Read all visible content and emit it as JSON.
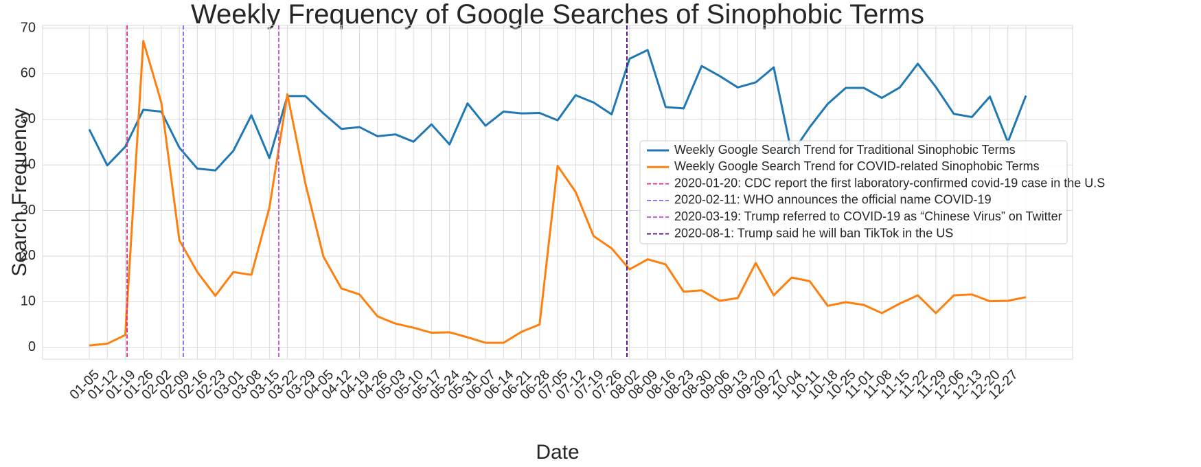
{
  "chart_data": {
    "type": "line",
    "title": "Weekly Frequency of Google Searches of Sinophobic Terms",
    "x_label": "Date",
    "y_label": "Search Frequency",
    "categories": [
      "01-05",
      "01-12",
      "01-19",
      "01-26",
      "02-02",
      "02-09",
      "02-16",
      "02-23",
      "03-01",
      "03-08",
      "03-15",
      "03-22",
      "03-29",
      "04-05",
      "04-12",
      "04-19",
      "04-26",
      "05-03",
      "05-10",
      "05-17",
      "05-24",
      "05-31",
      "06-07",
      "06-14",
      "06-21",
      "06-28",
      "07-05",
      "07-12",
      "07-19",
      "07-26",
      "08-02",
      "08-09",
      "08-16",
      "08-23",
      "08-30",
      "09-06",
      "09-13",
      "09-20",
      "09-27",
      "10-04",
      "10-11",
      "10-18",
      "10-25",
      "11-01",
      "11-08",
      "11-15",
      "11-22",
      "11-29",
      "12-06",
      "12-13",
      "12-20",
      "12-27",
      null
    ],
    "series": [
      {
        "name": "Weekly Google Search Trend for Traditional Sinophobic Terms",
        "color": "#1f77b4",
        "values": [
          47.8,
          39.9,
          44,
          52.1,
          51.7,
          43.8,
          39.2,
          38.8,
          43.1,
          50.9,
          41.5,
          55.1,
          55.1,
          51.3,
          47.9,
          48.3,
          46.3,
          46.7,
          45.1,
          48.9,
          44.5,
          53.5,
          48.6,
          51.7,
          51.3,
          51.4,
          49.8,
          55.3,
          53.7,
          51.1,
          63.3,
          65.2,
          52.7,
          52.4,
          61.7,
          59.5,
          57,
          58.1,
          61.4,
          42.5,
          48.3,
          53.4,
          56.9,
          56.9,
          54.7,
          57,
          62.2,
          57.1,
          51.2,
          50.5,
          55,
          45,
          55.2
        ]
      },
      {
        "name": "Weekly Google Search Trend for COVID-related Sinophobic Terms",
        "color": "#ff7f0e",
        "values": [
          0.4,
          0.8,
          2.7,
          67.2,
          53.7,
          23.5,
          16.5,
          11.3,
          16.5,
          15.9,
          30.6,
          55.5,
          35.9,
          19.9,
          12.9,
          11.6,
          6.8,
          5.2,
          4.3,
          3.2,
          3.3,
          2.2,
          1.0,
          1.0,
          3.4,
          5.0,
          39.8,
          34.1,
          24.4,
          21.7,
          17.1,
          19.3,
          18.2,
          12.2,
          12.5,
          10.2,
          10.8,
          18.5,
          11.4,
          15.3,
          14.5,
          9.1,
          9.9,
          9.3,
          7.5,
          9.6,
          11.4,
          7.5,
          11.4,
          11.6,
          10.1,
          10.2,
          11.0
        ]
      }
    ],
    "events": [
      {
        "label": "2020-01-20: CDC report the first laboratory-confirmed covid-19 case in the U.S",
        "color": "#e7298a",
        "x": 2.1
      },
      {
        "label": "2020-02-11: WHO announces the official name COVID-19",
        "color": "#7b68ee",
        "x": 5.22
      },
      {
        "label": "2020-03-19: Trump referred to COVID-19 as “Chinese Virus” on Twitter",
        "color": "#c44fd6",
        "x": 10.52
      },
      {
        "label": "2020-08-1: Trump said he will ban TikTok in the US",
        "color": "#4b0082",
        "x": 29.85
      }
    ],
    "ylim": [
      -2.6,
      70.6
    ],
    "yticks": [
      0,
      10,
      20,
      30,
      40,
      50,
      60,
      70
    ],
    "grid": true,
    "legend": "center right"
  }
}
